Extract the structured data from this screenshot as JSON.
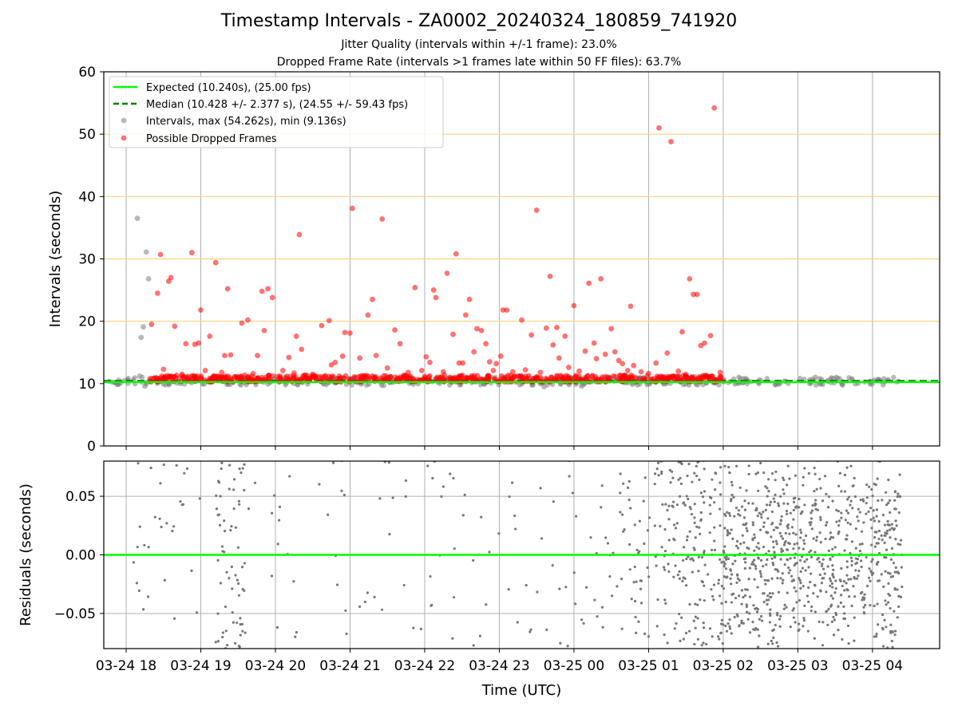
{
  "chart_data": [
    {
      "type": "scatter",
      "title": "Timestamp Intervals - ZA0002_20240324_180859_741920",
      "subtitle_lines": [
        "Jitter Quality (intervals within +/-1 frame): 23.0%",
        "Dropped Frame Rate (intervals >1 frames late within 50 FF files): 63.7%"
      ],
      "ylabel": "Intervals (seconds)",
      "ylim": [
        0,
        60
      ],
      "yticks": [
        0,
        10,
        20,
        30,
        40,
        50,
        60
      ],
      "x_time_range_hours": [
        17.7,
        28.9
      ],
      "xtick_hours": [
        18,
        19,
        20,
        21,
        22,
        23,
        24,
        25,
        26,
        27,
        28
      ],
      "grid": true,
      "reference_lines": [
        {
          "name": "Expected (10.240s), (25.00 fps)",
          "value": 10.24,
          "style": "solid",
          "color": "#00ff00"
        },
        {
          "name": "Median (10.428 +/- 2.377 s), (24.55 +/- 59.43 fps)",
          "value": 10.428,
          "style": "dashed",
          "color": "#008000"
        }
      ],
      "horizontal_bands": [
        20,
        30,
        40,
        50
      ],
      "band_color": "#ffd27f",
      "legend": {
        "location": "upper-left",
        "entries": [
          "Expected (10.240s), (25.00 fps)",
          "Median (10.428 +/- 2.377 s), (24.55 +/- 59.43 fps)",
          "Intervals, max (54.262s), min (9.136s)",
          "Possible Dropped Frames"
        ]
      },
      "series": [
        {
          "name": "Intervals, max (54.262s), min (9.136s)",
          "color": "#808080",
          "points": [
            [
              18.15,
              36.5
            ],
            [
              18.2,
              17.4
            ],
            [
              18.23,
              19.1
            ],
            [
              18.27,
              31.1
            ],
            [
              18.3,
              26.8
            ],
            [
              18.12,
              10.0
            ],
            [
              18.18,
              11.2
            ],
            [
              18.25,
              9.6
            ],
            [
              19.35,
              9.9
            ],
            [
              20.3,
              9.8
            ],
            [
              21.45,
              9.7
            ],
            [
              22.8,
              9.9
            ],
            [
              23.6,
              9.5
            ],
            [
              24.1,
              9.6
            ]
          ],
          "baseline_band_hours": [
            17.75,
            28.4
          ],
          "baseline_band_value": 10.4
        },
        {
          "name": "Possible Dropped Frames",
          "color": "#ff0000",
          "points": [
            [
              18.34,
              19.5
            ],
            [
              18.42,
              24.5
            ],
            [
              18.46,
              30.7
            ],
            [
              18.5,
              12.3
            ],
            [
              18.57,
              26.4
            ],
            [
              18.6,
              27.0
            ],
            [
              18.65,
              19.2
            ],
            [
              18.75,
              11.5
            ],
            [
              18.8,
              16.4
            ],
            [
              18.88,
              31.0
            ],
            [
              18.92,
              16.3
            ],
            [
              18.97,
              16.5
            ],
            [
              19.0,
              21.8
            ],
            [
              19.06,
              12.1
            ],
            [
              19.12,
              17.6
            ],
            [
              19.2,
              29.4
            ],
            [
              19.28,
              11.8
            ],
            [
              19.32,
              14.5
            ],
            [
              19.36,
              25.2
            ],
            [
              19.4,
              14.6
            ],
            [
              19.55,
              19.7
            ],
            [
              19.63,
              20.2
            ],
            [
              19.7,
              11.6
            ],
            [
              19.76,
              14.5
            ],
            [
              19.82,
              24.8
            ],
            [
              19.85,
              18.5
            ],
            [
              19.9,
              25.2
            ],
            [
              19.96,
              23.8
            ],
            [
              20.1,
              12.1
            ],
            [
              20.18,
              14.2
            ],
            [
              20.25,
              11.7
            ],
            [
              20.28,
              17.6
            ],
            [
              20.32,
              33.9
            ],
            [
              20.35,
              15.5
            ],
            [
              20.5,
              11.5
            ],
            [
              20.62,
              19.3
            ],
            [
              20.72,
              20.1
            ],
            [
              20.75,
              13.0
            ],
            [
              20.8,
              13.4
            ],
            [
              20.9,
              14.4
            ],
            [
              20.93,
              18.2
            ],
            [
              21.0,
              18.1
            ],
            [
              21.03,
              38.1
            ],
            [
              21.13,
              14.1
            ],
            [
              21.24,
              21.0
            ],
            [
              21.3,
              23.5
            ],
            [
              21.35,
              14.5
            ],
            [
              21.43,
              36.4
            ],
            [
              21.5,
              12.5
            ],
            [
              21.6,
              18.6
            ],
            [
              21.67,
              16.4
            ],
            [
              21.78,
              11.8
            ],
            [
              21.87,
              25.4
            ],
            [
              21.96,
              12.1
            ],
            [
              22.02,
              14.3
            ],
            [
              22.07,
              13.4
            ],
            [
              22.12,
              25.0
            ],
            [
              22.15,
              23.8
            ],
            [
              22.25,
              11.9
            ],
            [
              22.3,
              27.7
            ],
            [
              22.38,
              17.9
            ],
            [
              22.42,
              30.8
            ],
            [
              22.46,
              13.3
            ],
            [
              22.51,
              13.3
            ],
            [
              22.55,
              21.0
            ],
            [
              22.6,
              23.5
            ],
            [
              22.66,
              15.1
            ],
            [
              22.7,
              18.8
            ],
            [
              22.76,
              18.5
            ],
            [
              22.82,
              16.4
            ],
            [
              22.87,
              13.5
            ],
            [
              22.92,
              12.1
            ],
            [
              22.96,
              13.2
            ],
            [
              23.02,
              14.4
            ],
            [
              23.05,
              21.8
            ],
            [
              23.1,
              21.8
            ],
            [
              23.18,
              11.9
            ],
            [
              23.3,
              20.2
            ],
            [
              23.35,
              12.2
            ],
            [
              23.43,
              17.8
            ],
            [
              23.5,
              37.8
            ],
            [
              23.55,
              11.8
            ],
            [
              23.63,
              18.9
            ],
            [
              23.68,
              27.2
            ],
            [
              23.72,
              16.2
            ],
            [
              23.77,
              19.0
            ],
            [
              23.8,
              14.1
            ],
            [
              23.88,
              17.6
            ],
            [
              23.93,
              12.6
            ],
            [
              24.0,
              22.5
            ],
            [
              24.07,
              12.0
            ],
            [
              24.15,
              15.2
            ],
            [
              24.2,
              26.1
            ],
            [
              24.27,
              16.5
            ],
            [
              24.3,
              14.0
            ],
            [
              24.36,
              26.8
            ],
            [
              24.42,
              14.7
            ],
            [
              24.5,
              18.8
            ],
            [
              24.55,
              15.1
            ],
            [
              24.6,
              13.7
            ],
            [
              24.65,
              13.2
            ],
            [
              24.72,
              12.1
            ],
            [
              24.76,
              22.4
            ],
            [
              24.8,
              12.9
            ],
            [
              24.9,
              11.9
            ],
            [
              25.0,
              11.6
            ],
            [
              25.1,
              13.3
            ],
            [
              25.14,
              51.0
            ],
            [
              25.25,
              14.9
            ],
            [
              25.3,
              48.8
            ],
            [
              25.4,
              12.0
            ],
            [
              25.45,
              18.3
            ],
            [
              25.5,
              11.5
            ],
            [
              25.55,
              26.8
            ],
            [
              25.6,
              24.3
            ],
            [
              25.65,
              24.3
            ],
            [
              25.7,
              16.1
            ],
            [
              25.75,
              16.5
            ],
            [
              25.83,
              17.7
            ],
            [
              25.88,
              54.2
            ],
            [
              25.96,
              11.8
            ]
          ],
          "baseline_band_hours": [
            18.3,
            26.0
          ],
          "baseline_band_value": 10.8
        }
      ]
    },
    {
      "type": "scatter",
      "xlabel": "Time (UTC)",
      "ylabel": "Residuals (seconds)",
      "ylim": [
        -0.08,
        0.08
      ],
      "yticks": [
        -0.05,
        0.0,
        0.05
      ],
      "ytick_labels": [
        "−0.05",
        "0.00",
        "0.05"
      ],
      "x_time_range_hours": [
        17.7,
        28.9
      ],
      "xtick_hours": [
        18,
        19,
        20,
        21,
        22,
        23,
        24,
        25,
        26,
        27,
        28
      ],
      "xtick_labels": [
        "03-24 18",
        "03-24 19",
        "03-24 20",
        "03-24 21",
        "03-24 22",
        "03-24 23",
        "03-25 00",
        "03-25 01",
        "03-25 02",
        "03-25 03",
        "03-25 04"
      ],
      "grid": true,
      "reference_lines": [
        {
          "value": 0.0,
          "color": "#00ff00",
          "style": "solid"
        }
      ],
      "series": [
        {
          "name": "Residuals",
          "color": "#777777",
          "density_profile": [
            {
              "from": 18.1,
              "to": 19.0,
              "count": 35
            },
            {
              "from": 19.2,
              "to": 19.6,
              "count": 70
            },
            {
              "from": 19.6,
              "to": 24.6,
              "count": 110
            },
            {
              "from": 24.6,
              "to": 25.2,
              "count": 60
            },
            {
              "from": 25.2,
              "to": 26.0,
              "count": 180
            },
            {
              "from": 26.0,
              "to": 28.4,
              "count": 850
            }
          ]
        }
      ]
    }
  ]
}
